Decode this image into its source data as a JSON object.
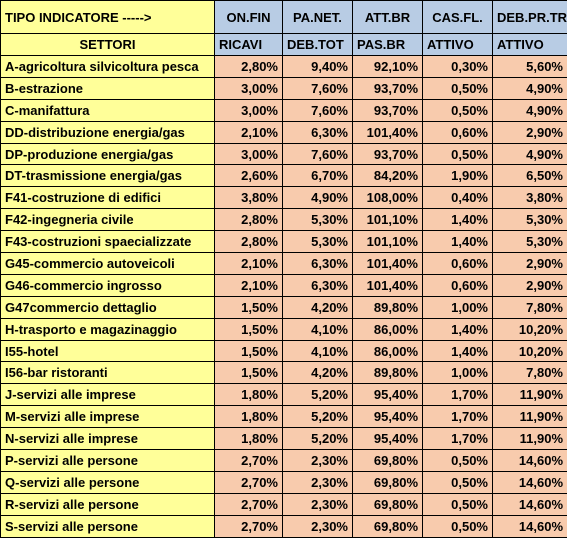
{
  "header": {
    "label": "TIPO INDICATORE ----->",
    "indicators": [
      "ON.FIN",
      "PA.NET.",
      "ATT.BR",
      "CAS.FL.",
      "DEB.PR.TR"
    ]
  },
  "subheader": {
    "label": "SETTORI",
    "bases": [
      "RICAVI",
      "DEB.TOT",
      "PAS.BR",
      "ATTIVO",
      "ATTIVO"
    ]
  },
  "rows": [
    {
      "sector": "A-agricoltura silvicoltura pesca",
      "values": [
        "2,80%",
        "9,40%",
        "92,10%",
        "0,30%",
        "5,60%"
      ]
    },
    {
      "sector": "B-estrazione",
      "values": [
        "3,00%",
        "7,60%",
        "93,70%",
        "0,50%",
        "4,90%"
      ]
    },
    {
      "sector": "C-manifattura",
      "values": [
        "3,00%",
        "7,60%",
        "93,70%",
        "0,50%",
        "4,90%"
      ]
    },
    {
      "sector": "DD-distribuzione energia/gas",
      "values": [
        "2,10%",
        "6,30%",
        "101,40%",
        "0,60%",
        "2,90%"
      ]
    },
    {
      "sector": "DP-produzione energia/gas",
      "values": [
        "3,00%",
        "7,60%",
        "93,70%",
        "0,50%",
        "4,90%"
      ]
    },
    {
      "sector": "DT-trasmissione energia/gas",
      "values": [
        "2,60%",
        "6,70%",
        "84,20%",
        "1,90%",
        "6,50%"
      ]
    },
    {
      "sector": "F41-costruzione di edifici",
      "values": [
        "3,80%",
        "4,90%",
        "108,00%",
        "0,40%",
        "3,80%"
      ]
    },
    {
      "sector": "F42-ingegneria civile",
      "values": [
        "2,80%",
        "5,30%",
        "101,10%",
        "1,40%",
        "5,30%"
      ]
    },
    {
      "sector": "F43-costruzioni spaecializzate",
      "values": [
        "2,80%",
        "5,30%",
        "101,10%",
        "1,40%",
        "5,30%"
      ]
    },
    {
      "sector": "G45-commercio autoveicoli",
      "values": [
        "2,10%",
        "6,30%",
        "101,40%",
        "0,60%",
        "2,90%"
      ]
    },
    {
      "sector": "G46-commercio ingrosso",
      "values": [
        "2,10%",
        "6,30%",
        "101,40%",
        "0,60%",
        "2,90%"
      ]
    },
    {
      "sector": "G47commercio dettaglio",
      "values": [
        "1,50%",
        "4,20%",
        "89,80%",
        "1,00%",
        "7,80%"
      ]
    },
    {
      "sector": "H-trasporto e magazinaggio",
      "values": [
        "1,50%",
        "4,10%",
        "86,00%",
        "1,40%",
        "10,20%"
      ]
    },
    {
      "sector": "I55-hotel",
      "values": [
        "1,50%",
        "4,10%",
        "86,00%",
        "1,40%",
        "10,20%"
      ]
    },
    {
      "sector": "I56-bar ristoranti",
      "values": [
        "1,50%",
        "4,20%",
        "89,80%",
        "1,00%",
        "7,80%"
      ]
    },
    {
      "sector": "J-servizi alle imprese",
      "values": [
        "1,80%",
        "5,20%",
        "95,40%",
        "1,70%",
        "11,90%"
      ]
    },
    {
      "sector": "M-servizi alle imprese",
      "values": [
        "1,80%",
        "5,20%",
        "95,40%",
        "1,70%",
        "11,90%"
      ]
    },
    {
      "sector": "N-servizi alle imprese",
      "values": [
        "1,80%",
        "5,20%",
        "95,40%",
        "1,70%",
        "11,90%"
      ]
    },
    {
      "sector": "P-servizi alle persone",
      "values": [
        "2,70%",
        "2,30%",
        "69,80%",
        "0,50%",
        "14,60%"
      ]
    },
    {
      "sector": "Q-servizi alle persone",
      "values": [
        "2,70%",
        "2,30%",
        "69,80%",
        "0,50%",
        "14,60%"
      ]
    },
    {
      "sector": "R-servizi alle persone",
      "values": [
        "2,70%",
        "2,30%",
        "69,80%",
        "0,50%",
        "14,60%"
      ]
    },
    {
      "sector": "S-servizi alle persone",
      "values": [
        "2,70%",
        "2,30%",
        "69,80%",
        "0,50%",
        "14,60%"
      ]
    }
  ],
  "colors": {
    "sector_fill": "#ffff99",
    "indicator_fill": "#b8cce4",
    "value_fill": "#f8cbad",
    "indicator_text": "#1f3864"
  }
}
